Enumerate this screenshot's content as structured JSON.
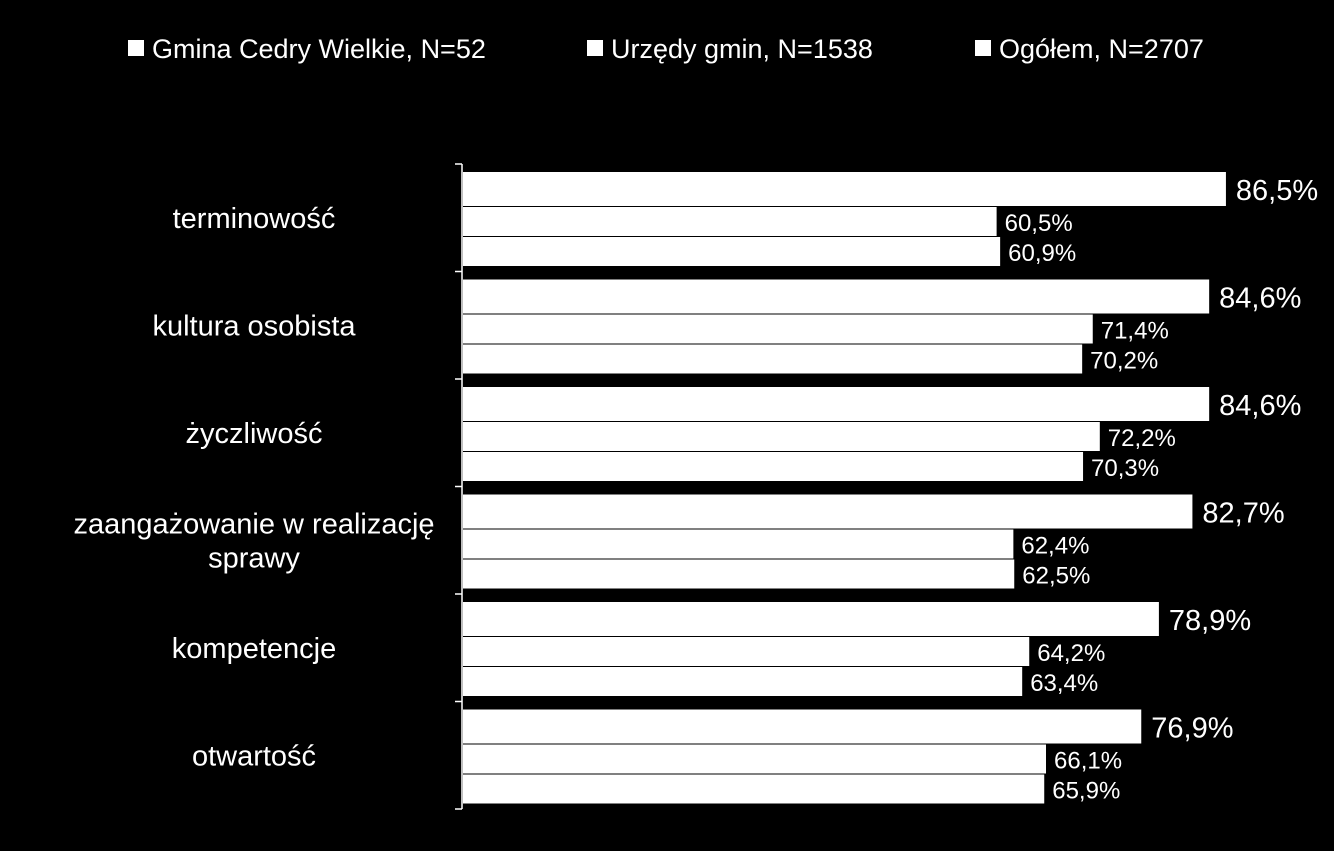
{
  "chart_data": {
    "type": "bar",
    "orientation": "horizontal",
    "categories": [
      "terminowość",
      "kultura osobista",
      "życzliwość",
      "zaangażowanie w realizację sprawy",
      "kompetencje",
      "otwartość"
    ],
    "series": [
      {
        "name": "Gmina Cedry Wielkie, N=52",
        "values": [
          86.5,
          84.6,
          84.6,
          82.7,
          78.9,
          76.9
        ],
        "labels": [
          "86,5%",
          "84,6%",
          "84,6%",
          "82,7%",
          "78,9%",
          "76,9%"
        ]
      },
      {
        "name": "Urzędy gmin, N=1538",
        "values": [
          60.5,
          71.4,
          72.2,
          62.4,
          64.2,
          66.1
        ],
        "labels": [
          "60,5%",
          "71,4%",
          "72,2%",
          "62,4%",
          "64,2%",
          "66,1%"
        ]
      },
      {
        "name": "Ogółem, N=2707",
        "values": [
          60.9,
          70.2,
          70.3,
          62.5,
          63.4,
          65.9
        ],
        "labels": [
          "60,9%",
          "70,2%",
          "70,3%",
          "62,5%",
          "63,4%",
          "65,9%"
        ]
      }
    ],
    "xlim": [
      0,
      100
    ],
    "grid": false,
    "legend_position": "top",
    "colors": {
      "background": "#000000",
      "bars": "#ffffff",
      "text": "#ffffff"
    }
  }
}
